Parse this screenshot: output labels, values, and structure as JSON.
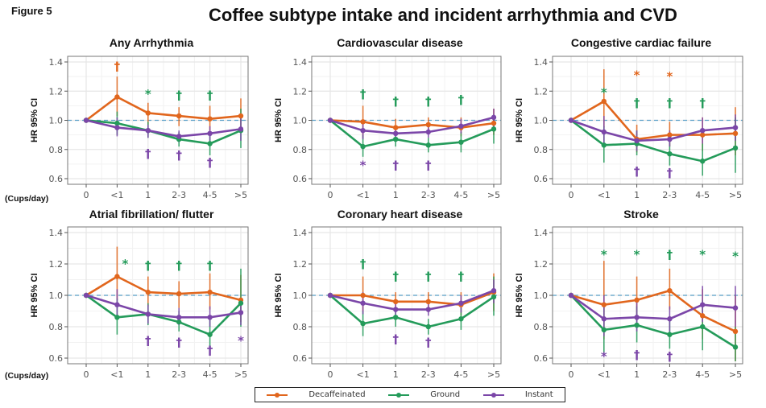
{
  "figure_label": "Figure 5",
  "title": "Coffee subtype intake and incident arrhythmia and CVD",
  "x_unit_label": "(Cups/day)",
  "legend": [
    {
      "name": "Decaffeinated",
      "color": "#e1661d"
    },
    {
      "name": "Ground",
      "color": "#249b5a"
    },
    {
      "name": "Instant",
      "color": "#7b46a8"
    }
  ],
  "chart_data": [
    {
      "type": "line",
      "title": "Any Arrhythmia",
      "xlabel": "(Cups/day)",
      "ylabel": "HR 95% CI",
      "categories": [
        "0",
        "<1",
        "1",
        "2-3",
        "4-5",
        ">5"
      ],
      "ylim": [
        0.6,
        1.4
      ],
      "yticks": [
        "0.6",
        "0.8",
        "1.0",
        "1.2",
        "1.4"
      ],
      "reference_line": 1.0,
      "grid": true,
      "series": [
        {
          "name": "Decaffeinated",
          "values": [
            1.0,
            1.16,
            1.05,
            1.03,
            1.01,
            1.03
          ],
          "ci_low": [
            1.0,
            1.03,
            0.97,
            0.96,
            0.93,
            0.93
          ],
          "ci_high": [
            1.0,
            1.3,
            1.12,
            1.09,
            1.1,
            1.15
          ]
        },
        {
          "name": "Ground",
          "values": [
            1.0,
            0.98,
            0.93,
            0.87,
            0.84,
            0.93
          ],
          "ci_low": [
            1.0,
            0.9,
            0.88,
            0.82,
            0.76,
            0.81
          ],
          "ci_high": [
            1.0,
            1.06,
            0.99,
            0.92,
            0.92,
            1.08
          ]
        },
        {
          "name": "Instant",
          "values": [
            1.0,
            0.95,
            0.93,
            0.89,
            0.91,
            0.94
          ],
          "ci_low": [
            1.0,
            0.89,
            0.88,
            0.85,
            0.86,
            0.86
          ],
          "ci_high": [
            1.0,
            1.02,
            0.97,
            0.93,
            0.96,
            1.02
          ]
        }
      ],
      "annotations": [
        {
          "series": "Decaffeinated",
          "category": "<1",
          "symbol": "†",
          "y": 1.37
        },
        {
          "series": "Ground",
          "category": "1",
          "symbol": "*",
          "y": 1.18
        },
        {
          "series": "Ground",
          "category": "2-3",
          "symbol": "†",
          "y": 1.17
        },
        {
          "series": "Ground",
          "category": "4-5",
          "symbol": "†",
          "y": 1.17
        },
        {
          "series": "Instant",
          "category": "1",
          "symbol": "†",
          "y": 0.77
        },
        {
          "series": "Instant",
          "category": "2-3",
          "symbol": "†",
          "y": 0.76
        },
        {
          "series": "Instant",
          "category": "4-5",
          "symbol": "†",
          "y": 0.71
        }
      ]
    },
    {
      "type": "line",
      "title": "Cardiovascular disease",
      "xlabel": "",
      "ylabel": "HR 95% CI",
      "categories": [
        "0",
        "<1",
        "1",
        "2-3",
        "4-5",
        ">5"
      ],
      "ylim": [
        0.6,
        1.4
      ],
      "yticks": [
        "0.6",
        "0.8",
        "1.0",
        "1.2",
        "1.4"
      ],
      "reference_line": 1.0,
      "grid": true,
      "series": [
        {
          "name": "Decaffeinated",
          "values": [
            1.0,
            0.99,
            0.95,
            0.97,
            0.95,
            0.98
          ],
          "ci_low": [
            1.0,
            0.88,
            0.89,
            0.92,
            0.89,
            0.9
          ],
          "ci_high": [
            1.0,
            1.1,
            1.01,
            1.02,
            1.02,
            1.08
          ]
        },
        {
          "name": "Ground",
          "values": [
            1.0,
            0.82,
            0.87,
            0.83,
            0.85,
            0.94
          ],
          "ci_low": [
            1.0,
            0.75,
            0.82,
            0.78,
            0.78,
            0.84
          ],
          "ci_high": [
            1.0,
            0.9,
            0.92,
            0.88,
            0.92,
            1.04
          ]
        },
        {
          "name": "Instant",
          "values": [
            1.0,
            0.93,
            0.91,
            0.92,
            0.96,
            1.02
          ],
          "ci_low": [
            1.0,
            0.87,
            0.88,
            0.88,
            0.91,
            0.95
          ],
          "ci_high": [
            1.0,
            0.99,
            0.94,
            0.96,
            1.01,
            1.08
          ]
        }
      ],
      "annotations": [
        {
          "series": "Ground",
          "category": "<1",
          "symbol": "†",
          "y": 1.18
        },
        {
          "series": "Ground",
          "category": "1",
          "symbol": "†",
          "y": 1.13
        },
        {
          "series": "Ground",
          "category": "2-3",
          "symbol": "†",
          "y": 1.13
        },
        {
          "series": "Ground",
          "category": "4-5",
          "symbol": "†",
          "y": 1.14
        },
        {
          "series": "Instant",
          "category": "<1",
          "symbol": "*",
          "y": 0.69
        },
        {
          "series": "Instant",
          "category": "1",
          "symbol": "†",
          "y": 0.69
        },
        {
          "series": "Instant",
          "category": "2-3",
          "symbol": "†",
          "y": 0.69
        }
      ]
    },
    {
      "type": "line",
      "title": "Congestive cardiac failure",
      "xlabel": "",
      "ylabel": "HR 95% CI",
      "categories": [
        "0",
        "<1",
        "1",
        "2-3",
        "4-5",
        ">5"
      ],
      "ylim": [
        0.6,
        1.4
      ],
      "yticks": [
        "0.6",
        "0.8",
        "1.0",
        "1.2",
        "1.4"
      ],
      "reference_line": 1.0,
      "grid": true,
      "series": [
        {
          "name": "Decaffeinated",
          "values": [
            1.0,
            1.13,
            0.87,
            0.9,
            0.9,
            0.91
          ],
          "ci_low": [
            1.0,
            0.95,
            0.78,
            0.82,
            0.79,
            0.76
          ],
          "ci_high": [
            1.0,
            1.35,
            0.97,
            0.99,
            1.02,
            1.09
          ]
        },
        {
          "name": "Ground",
          "values": [
            1.0,
            0.83,
            0.84,
            0.77,
            0.72,
            0.81
          ],
          "ci_low": [
            1.0,
            0.71,
            0.76,
            0.69,
            0.62,
            0.64
          ],
          "ci_high": [
            1.0,
            0.96,
            0.93,
            0.86,
            0.84,
            1.02
          ]
        },
        {
          "name": "Instant",
          "values": [
            1.0,
            0.92,
            0.86,
            0.87,
            0.93,
            0.95
          ],
          "ci_low": [
            1.0,
            0.82,
            0.79,
            0.82,
            0.84,
            0.86
          ],
          "ci_high": [
            1.0,
            1.03,
            0.93,
            0.93,
            1.02,
            1.04
          ]
        }
      ],
      "annotations": [
        {
          "series": "Decaffeinated",
          "category": "1",
          "symbol": "*",
          "y": 1.31
        },
        {
          "series": "Decaffeinated",
          "category": "2-3",
          "symbol": "*",
          "y": 1.3
        },
        {
          "series": "Ground",
          "category": "<1",
          "symbol": "*",
          "y": 1.19
        },
        {
          "series": "Ground",
          "category": "1",
          "symbol": "†",
          "y": 1.12
        },
        {
          "series": "Ground",
          "category": "2-3",
          "symbol": "†",
          "y": 1.12
        },
        {
          "series": "Ground",
          "category": "4-5",
          "symbol": "†",
          "y": 1.12
        },
        {
          "series": "Instant",
          "category": "1",
          "symbol": "†",
          "y": 0.65
        },
        {
          "series": "Instant",
          "category": "2-3",
          "symbol": "†",
          "y": 0.64
        }
      ]
    },
    {
      "type": "line",
      "title": "Atrial fibrillation/ flutter",
      "xlabel": "(Cups/day)",
      "ylabel": "HR 95% CI",
      "categories": [
        "0",
        "<1",
        "1",
        "2-3",
        "4-5",
        ">5"
      ],
      "ylim": [
        0.6,
        1.4
      ],
      "yticks": [
        "0.6",
        "0.8",
        "1.0",
        "1.2",
        "1.4"
      ],
      "reference_line": 1.0,
      "grid": true,
      "series": [
        {
          "name": "Decaffeinated",
          "values": [
            1.0,
            1.12,
            1.02,
            1.01,
            1.02,
            0.97
          ],
          "ci_low": [
            1.0,
            0.97,
            0.93,
            0.92,
            0.91,
            0.83
          ],
          "ci_high": [
            1.0,
            1.31,
            1.12,
            1.09,
            1.14,
            1.13
          ]
        },
        {
          "name": "Ground",
          "values": [
            1.0,
            0.86,
            0.88,
            0.83,
            0.75,
            0.95
          ],
          "ci_low": [
            1.0,
            0.75,
            0.81,
            0.77,
            0.65,
            0.8
          ],
          "ci_high": [
            1.0,
            0.98,
            0.95,
            0.9,
            0.86,
            1.17
          ]
        },
        {
          "name": "Instant",
          "values": [
            1.0,
            0.94,
            0.88,
            0.86,
            0.86,
            0.89
          ],
          "ci_low": [
            1.0,
            0.86,
            0.82,
            0.81,
            0.8,
            0.81
          ],
          "ci_high": [
            1.0,
            1.04,
            0.94,
            0.92,
            0.93,
            0.98
          ]
        }
      ],
      "annotations": [
        {
          "series": "Ground",
          "category": "<1",
          "symbol": "*",
          "y": 1.2
        },
        {
          "series": "Ground",
          "category": "1",
          "symbol": "†",
          "y": 1.19
        },
        {
          "series": "Ground",
          "category": "2-3",
          "symbol": "†",
          "y": 1.19
        },
        {
          "series": "Ground",
          "category": "4-5",
          "symbol": "†",
          "y": 1.19
        },
        {
          "series": "Instant",
          "category": "1",
          "symbol": "†",
          "y": 0.71
        },
        {
          "series": "Instant",
          "category": "2-3",
          "symbol": "†",
          "y": 0.7
        },
        {
          "series": "Instant",
          "category": "4-5",
          "symbol": "†",
          "y": 0.65
        },
        {
          "series": "Instant",
          "category": ">5",
          "symbol": "*",
          "y": 0.71
        }
      ]
    },
    {
      "type": "line",
      "title": "Coronary heart disease",
      "xlabel": "",
      "ylabel": "HR 95% CI",
      "categories": [
        "0",
        "<1",
        "1",
        "2-3",
        "4-5",
        ">5"
      ],
      "ylim": [
        0.6,
        1.4
      ],
      "yticks": [
        "0.6",
        "0.8",
        "1.0",
        "1.2",
        "1.4"
      ],
      "reference_line": 1.0,
      "grid": true,
      "series": [
        {
          "name": "Decaffeinated",
          "values": [
            1.0,
            1.0,
            0.96,
            0.96,
            0.94,
            1.02
          ],
          "ci_low": [
            1.0,
            0.9,
            0.9,
            0.91,
            0.87,
            0.9
          ],
          "ci_high": [
            1.0,
            1.12,
            1.02,
            1.02,
            1.02,
            1.14
          ]
        },
        {
          "name": "Ground",
          "values": [
            1.0,
            0.82,
            0.86,
            0.8,
            0.85,
            0.99
          ],
          "ci_low": [
            1.0,
            0.74,
            0.8,
            0.75,
            0.78,
            0.87
          ],
          "ci_high": [
            1.0,
            0.9,
            0.92,
            0.85,
            0.92,
            1.12
          ]
        },
        {
          "name": "Instant",
          "values": [
            1.0,
            0.95,
            0.91,
            0.91,
            0.95,
            1.03
          ],
          "ci_low": [
            1.0,
            0.88,
            0.87,
            0.87,
            0.89,
            0.95
          ],
          "ci_high": [
            1.0,
            1.02,
            0.95,
            0.95,
            1.0,
            1.1
          ]
        }
      ],
      "annotations": [
        {
          "series": "Ground",
          "category": "<1",
          "symbol": "†",
          "y": 1.2
        },
        {
          "series": "Ground",
          "category": "1",
          "symbol": "†",
          "y": 1.12
        },
        {
          "series": "Ground",
          "category": "2-3",
          "symbol": "†",
          "y": 1.12
        },
        {
          "series": "Ground",
          "category": "4-5",
          "symbol": "†",
          "y": 1.12
        },
        {
          "series": "Instant",
          "category": "1",
          "symbol": "†",
          "y": 0.72
        },
        {
          "series": "Instant",
          "category": "2-3",
          "symbol": "†",
          "y": 0.7
        }
      ]
    },
    {
      "type": "line",
      "title": "Stroke",
      "xlabel": "",
      "ylabel": "HR 95% CI",
      "categories": [
        "0",
        "<1",
        "1",
        "2-3",
        "4-5",
        ">5"
      ],
      "ylim": [
        0.6,
        1.4
      ],
      "yticks": [
        "0.6",
        "0.8",
        "1.0",
        "1.2",
        "1.4"
      ],
      "reference_line": 1.0,
      "grid": true,
      "series": [
        {
          "name": "Decaffeinated",
          "values": [
            1.0,
            0.94,
            0.97,
            1.03,
            0.87,
            0.77
          ],
          "ci_low": [
            1.0,
            0.72,
            0.84,
            0.91,
            0.72,
            0.58
          ],
          "ci_high": [
            1.0,
            1.22,
            1.12,
            1.17,
            1.04,
            1.0
          ]
        },
        {
          "name": "Ground",
          "values": [
            1.0,
            0.78,
            0.81,
            0.75,
            0.8,
            0.67
          ],
          "ci_low": [
            1.0,
            0.62,
            0.7,
            0.66,
            0.65,
            0.58
          ],
          "ci_high": [
            1.0,
            0.95,
            0.93,
            0.86,
            0.97,
            0.8
          ]
        },
        {
          "name": "Instant",
          "values": [
            1.0,
            0.85,
            0.86,
            0.85,
            0.94,
            0.92
          ],
          "ci_low": [
            1.0,
            0.74,
            0.77,
            0.77,
            0.83,
            0.8
          ],
          "ci_high": [
            1.0,
            1.0,
            0.96,
            0.93,
            1.06,
            1.06
          ]
        }
      ],
      "annotations": [
        {
          "series": "Ground",
          "category": "<1",
          "symbol": "*",
          "y": 1.26
        },
        {
          "series": "Ground",
          "category": "1",
          "symbol": "*",
          "y": 1.26
        },
        {
          "series": "Ground",
          "category": "2-3",
          "symbol": "†",
          "y": 1.26
        },
        {
          "series": "Ground",
          "category": "4-5",
          "symbol": "*",
          "y": 1.26
        },
        {
          "series": "Ground",
          "category": ">5",
          "symbol": "*",
          "y": 1.25
        },
        {
          "series": "Instant",
          "category": "<1",
          "symbol": "*",
          "y": 0.61
        },
        {
          "series": "Instant",
          "category": "1",
          "symbol": "†",
          "y": 0.62
        },
        {
          "series": "Instant",
          "category": "2-3",
          "symbol": "†",
          "y": 0.61
        }
      ]
    }
  ]
}
